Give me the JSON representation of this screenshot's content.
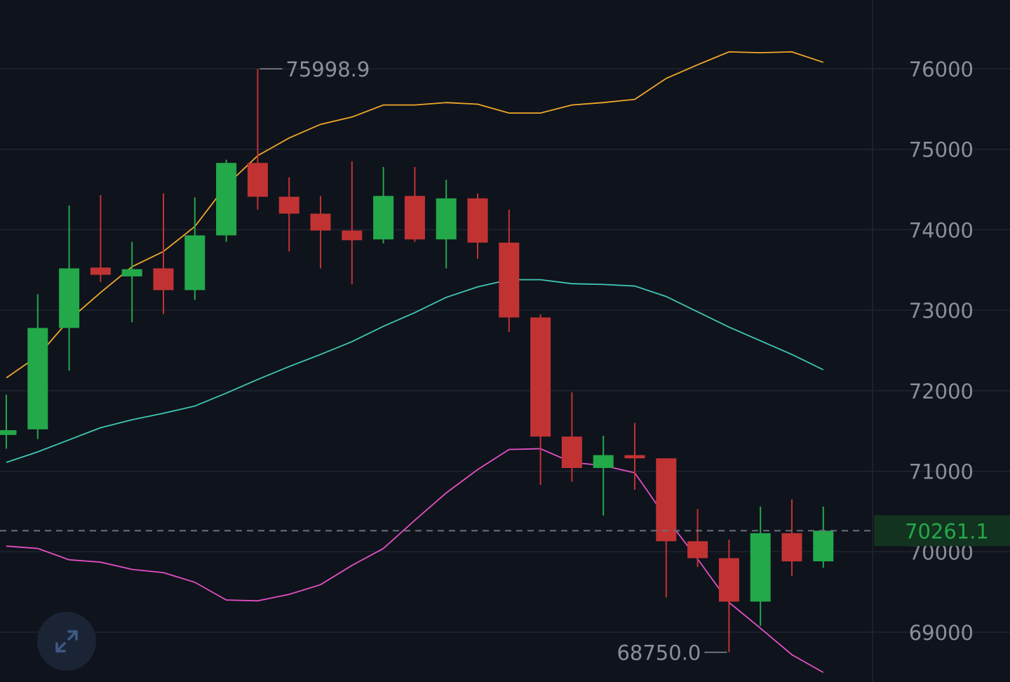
{
  "chart_data": {
    "type": "candlestick",
    "title": "",
    "xlabel": "",
    "ylabel": "",
    "ylim": [
      68450,
      76800
    ],
    "y_ticks": [
      "69000",
      "70000",
      "71000",
      "72000",
      "73000",
      "74000",
      "75000",
      "76000"
    ],
    "grid": true,
    "candles": [
      {
        "open": 71450,
        "high": 71950,
        "low": 71280,
        "close": 71510
      },
      {
        "open": 71520,
        "high": 73200,
        "low": 71400,
        "close": 72780
      },
      {
        "open": 72780,
        "high": 74300,
        "low": 72250,
        "close": 73520
      },
      {
        "open": 73530,
        "high": 74430,
        "low": 73350,
        "close": 73440
      },
      {
        "open": 73420,
        "high": 73850,
        "low": 72850,
        "close": 73510
      },
      {
        "open": 73520,
        "high": 74450,
        "low": 72950,
        "close": 73250
      },
      {
        "open": 73250,
        "high": 74400,
        "low": 73130,
        "close": 73930
      },
      {
        "open": 73930,
        "high": 74870,
        "low": 73850,
        "close": 74830
      },
      {
        "open": 74830,
        "high": 75998.9,
        "low": 74250,
        "close": 74410
      },
      {
        "open": 74410,
        "high": 74650,
        "low": 73730,
        "close": 74200
      },
      {
        "open": 74200,
        "high": 74420,
        "low": 73520,
        "close": 73990
      },
      {
        "open": 73990,
        "high": 74850,
        "low": 73320,
        "close": 73870
      },
      {
        "open": 73880,
        "high": 74780,
        "low": 73830,
        "close": 74420
      },
      {
        "open": 74420,
        "high": 74780,
        "low": 73850,
        "close": 73880
      },
      {
        "open": 73880,
        "high": 74620,
        "low": 73520,
        "close": 74390
      },
      {
        "open": 74390,
        "high": 74450,
        "low": 73640,
        "close": 73840
      },
      {
        "open": 73840,
        "high": 74250,
        "low": 72730,
        "close": 72910
      },
      {
        "open": 72910,
        "high": 72950,
        "low": 70830,
        "close": 71430
      },
      {
        "open": 71430,
        "high": 71980,
        "low": 70870,
        "close": 71040
      },
      {
        "open": 71040,
        "high": 71440,
        "low": 70450,
        "close": 71200
      },
      {
        "open": 71200,
        "high": 71600,
        "low": 70770,
        "close": 71160
      },
      {
        "open": 71160,
        "high": 71160,
        "low": 69430,
        "close": 70130
      },
      {
        "open": 70130,
        "high": 70530,
        "low": 69810,
        "close": 69920
      },
      {
        "open": 69920,
        "high": 70150,
        "low": 68750.0,
        "close": 69380
      },
      {
        "open": 69380,
        "high": 70560,
        "low": 69080,
        "close": 70230
      },
      {
        "open": 70230,
        "high": 70650,
        "low": 69700,
        "close": 69880
      },
      {
        "open": 69880,
        "high": 70560,
        "low": 69800,
        "close": 70261.1
      }
    ],
    "bands": {
      "upper": [
        72160,
        72430,
        72880,
        73220,
        73540,
        73730,
        74040,
        74550,
        74920,
        75140,
        75310,
        75400,
        75550,
        75550,
        75580,
        75560,
        75450,
        75450,
        75550,
        75580,
        75620,
        75880,
        76050,
        76210,
        76200,
        76210,
        76080
      ],
      "middle": [
        71110,
        71240,
        71390,
        71540,
        71640,
        71720,
        71810,
        71970,
        72140,
        72300,
        72450,
        72610,
        72800,
        72970,
        73160,
        73290,
        73380,
        73380,
        73330,
        73320,
        73300,
        73170,
        72980,
        72790,
        72620,
        72450,
        72260
      ],
      "lower": [
        70070,
        70040,
        69900,
        69870,
        69780,
        69740,
        69620,
        69400,
        69390,
        69470,
        69590,
        69830,
        70040,
        70390,
        70730,
        71020,
        71270,
        71280,
        71110,
        71070,
        70980,
        70420,
        69910,
        69370,
        69050,
        68720,
        68500
      ]
    },
    "current_price": "70261.1",
    "high_label": "75998.9",
    "low_label": "68750.0",
    "colors": {
      "up": "#23a84a",
      "down": "#c13333",
      "upper_band": "#f0a82a",
      "middle_band": "#3fc7b4",
      "lower_band": "#e34fc4",
      "grid": "#232834",
      "background": "#0f131c",
      "axis_text": "#8a8f98",
      "current_price": "#23a84a"
    }
  },
  "controls": {
    "expand_icon": "expand-arrows-icon"
  }
}
